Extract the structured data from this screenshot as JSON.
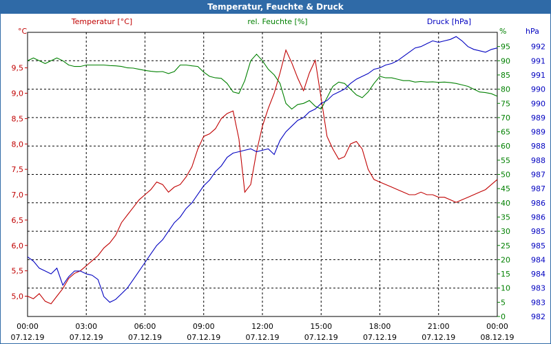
{
  "window": {
    "title": "Temperatur, Feuchte & Druck"
  },
  "colors": {
    "temperature": "#c00000",
    "humidity": "#008000",
    "pressure": "#0000c0",
    "title_bar": "#2f6aa7"
  },
  "chart_data": {
    "type": "line",
    "title": "Temperatur, Feuchte & Druck",
    "xlabel": "",
    "legend": "top",
    "grid": true,
    "x_ticks": [
      {
        "time": "00:00",
        "date": "07.12.19"
      },
      {
        "time": "03:00",
        "date": "07.12.19"
      },
      {
        "time": "06:00",
        "date": "07.12.19"
      },
      {
        "time": "09:00",
        "date": "07.12.19"
      },
      {
        "time": "12:00",
        "date": "07.12.19"
      },
      {
        "time": "15:00",
        "date": "07.12.19"
      },
      {
        "time": "18:00",
        "date": "07.12.19"
      },
      {
        "time": "21:00",
        "date": "07.12.19"
      },
      {
        "time": "00:00",
        "date": "08.12.19"
      }
    ],
    "xlim_hours": [
      0,
      24
    ],
    "axes": {
      "temperature": {
        "unit": "°C",
        "label": "Temperatur [°C]",
        "ylim": [
          4.6,
          10.2
        ],
        "ticks": [
          "5,0",
          "5,5",
          "6,0",
          "6,5",
          "7,0",
          "7,5",
          "8,0",
          "8,5",
          "9,0",
          "9,5"
        ],
        "tick_values": [
          5.0,
          5.5,
          6.0,
          6.5,
          7.0,
          7.5,
          8.0,
          8.5,
          9.0,
          9.5
        ]
      },
      "humidity": {
        "unit": "%",
        "label": "rel. Feuchte [%]",
        "ylim": [
          0,
          100
        ],
        "ticks": [
          "0",
          "5",
          "10",
          "15",
          "20",
          "25",
          "30",
          "35",
          "40",
          "45",
          "50",
          "55",
          "60",
          "65",
          "70",
          "75",
          "80",
          "85",
          "90",
          "95"
        ],
        "tick_values": [
          0,
          5,
          10,
          15,
          20,
          25,
          30,
          35,
          40,
          45,
          50,
          55,
          60,
          65,
          70,
          75,
          80,
          85,
          90,
          95
        ]
      },
      "pressure": {
        "unit": "hPa",
        "label": "Druck [hPa]",
        "ticks": [
          "982",
          "983",
          "983",
          "984",
          "984",
          "985",
          "985",
          "986",
          "986",
          "987",
          "987",
          "988",
          "988",
          "989",
          "989",
          "990",
          "990",
          "991",
          "991",
          "992"
        ]
      }
    },
    "series": [
      {
        "name": "Temperatur [°C]",
        "axis": "temperature",
        "x": [
          0,
          0.3,
          0.6,
          0.9,
          1.2,
          1.5,
          1.8,
          2.1,
          2.4,
          2.7,
          3.0,
          3.3,
          3.6,
          3.9,
          4.2,
          4.5,
          4.8,
          5.1,
          5.4,
          5.7,
          6.0,
          6.3,
          6.6,
          6.9,
          7.2,
          7.5,
          7.8,
          8.1,
          8.4,
          8.7,
          9.0,
          9.3,
          9.6,
          9.9,
          10.2,
          10.5,
          10.8,
          11.1,
          11.4,
          11.7,
          12.0,
          12.3,
          12.6,
          12.9,
          13.2,
          13.5,
          13.8,
          14.1,
          14.4,
          14.7,
          15.0,
          15.3,
          15.6,
          15.9,
          16.2,
          16.5,
          16.8,
          17.1,
          17.4,
          17.7,
          18.0,
          18.3,
          18.6,
          18.9,
          19.2,
          19.5,
          19.8,
          20.1,
          20.4,
          20.7,
          21.0,
          21.3,
          21.6,
          21.9,
          22.2,
          22.5,
          22.8,
          23.1,
          23.4,
          23.7,
          24.0
        ],
        "values": [
          5.0,
          4.95,
          5.05,
          4.9,
          4.85,
          5.0,
          5.15,
          5.35,
          5.45,
          5.5,
          5.6,
          5.7,
          5.8,
          5.95,
          6.05,
          6.2,
          6.45,
          6.6,
          6.75,
          6.9,
          7.0,
          7.1,
          7.25,
          7.2,
          7.05,
          7.15,
          7.2,
          7.35,
          7.55,
          7.9,
          8.15,
          8.2,
          8.3,
          8.5,
          8.6,
          8.65,
          8.1,
          7.05,
          7.2,
          7.85,
          8.35,
          8.7,
          9.0,
          9.4,
          9.85,
          9.6,
          9.3,
          9.05,
          9.4,
          9.65,
          8.9,
          8.15,
          7.9,
          7.7,
          7.75,
          8.0,
          8.05,
          7.9,
          7.5,
          7.3,
          7.25,
          7.2,
          7.15,
          7.1,
          7.05,
          7.0,
          7.0,
          7.05,
          7.0,
          7.0,
          6.95,
          6.95,
          6.9,
          6.85,
          6.9,
          6.95,
          7.0,
          7.05,
          7.1,
          7.2,
          7.3
        ]
      },
      {
        "name": "rel. Feuchte [%]",
        "axis": "humidity",
        "x": [
          0,
          0.3,
          0.6,
          0.9,
          1.2,
          1.5,
          1.8,
          2.1,
          2.4,
          2.7,
          3.0,
          3.3,
          3.6,
          3.9,
          4.2,
          4.5,
          4.8,
          5.1,
          5.4,
          5.7,
          6.0,
          6.3,
          6.6,
          6.9,
          7.2,
          7.5,
          7.8,
          8.1,
          8.4,
          8.7,
          9.0,
          9.3,
          9.6,
          9.9,
          10.2,
          10.5,
          10.8,
          11.1,
          11.4,
          11.7,
          12.0,
          12.3,
          12.6,
          12.9,
          13.2,
          13.5,
          13.8,
          14.1,
          14.4,
          14.7,
          15.0,
          15.3,
          15.6,
          15.9,
          16.2,
          16.5,
          16.8,
          17.1,
          17.4,
          17.7,
          18.0,
          18.3,
          18.6,
          18.9,
          19.2,
          19.5,
          19.8,
          20.1,
          20.4,
          20.7,
          21.0,
          21.3,
          21.6,
          21.9,
          22.2,
          22.5,
          22.8,
          23.1,
          23.4,
          23.7,
          24.0
        ],
        "values": [
          90,
          91,
          90,
          89,
          90,
          91,
          90,
          88.5,
          88,
          88,
          88.5,
          88.5,
          88.5,
          88.5,
          88.3,
          88.2,
          88,
          87.5,
          87.4,
          87,
          86.6,
          86.3,
          86.1,
          86.2,
          85.5,
          86.2,
          88.5,
          88.5,
          88.2,
          88,
          86,
          84.5,
          84,
          83.8,
          82,
          79,
          78.5,
          83,
          90,
          92.3,
          90,
          87,
          85,
          82,
          75,
          73,
          74.6,
          75,
          76,
          74,
          73,
          77,
          81,
          82.5,
          82,
          80,
          78,
          77,
          79,
          82,
          84.5,
          84,
          84,
          83.5,
          83,
          83,
          82.5,
          82.7,
          82.5,
          82.6,
          82.4,
          82.5,
          82.3,
          82,
          81.5,
          81,
          80,
          79,
          78.8,
          78.4,
          77.5
        ]
      },
      {
        "name": "Druck [hPa]",
        "axis": "pressure",
        "axis_ylim_scale": [
          0,
          100
        ],
        "x": [
          0,
          0.3,
          0.6,
          0.9,
          1.2,
          1.5,
          1.8,
          2.1,
          2.4,
          2.7,
          3.0,
          3.3,
          3.6,
          3.9,
          4.2,
          4.5,
          4.8,
          5.1,
          5.4,
          5.7,
          6.0,
          6.3,
          6.6,
          6.9,
          7.2,
          7.5,
          7.8,
          8.1,
          8.4,
          8.7,
          9.0,
          9.3,
          9.6,
          9.9,
          10.2,
          10.5,
          10.8,
          11.1,
          11.4,
          11.7,
          12.0,
          12.3,
          12.6,
          12.9,
          13.2,
          13.5,
          13.8,
          14.1,
          14.4,
          14.7,
          15.0,
          15.3,
          15.6,
          15.9,
          16.2,
          16.5,
          16.8,
          17.1,
          17.4,
          17.7,
          18.0,
          18.3,
          18.6,
          18.9,
          19.2,
          19.5,
          19.8,
          20.1,
          20.4,
          20.7,
          21.0,
          21.3,
          21.6,
          21.9,
          22.2,
          22.5,
          22.8,
          23.1,
          23.4,
          23.7,
          24.0
        ],
        "values": [
          21,
          19.5,
          17,
          16,
          15,
          17,
          11,
          14,
          16,
          16,
          15,
          14.5,
          13,
          7,
          5,
          6,
          8,
          10,
          13,
          16,
          19,
          22,
          25,
          27,
          30,
          33,
          35,
          38,
          40,
          43,
          46,
          48,
          51,
          53,
          56,
          57.5,
          58,
          58.5,
          59,
          58,
          58.5,
          59,
          57,
          62,
          65,
          67,
          69,
          70,
          72,
          73,
          75,
          76,
          78,
          79,
          80,
          82,
          83.5,
          84.5,
          85.5,
          87,
          87.5,
          88.5,
          89,
          90,
          91.5,
          93,
          94.5,
          95,
          96,
          97,
          96.5,
          97,
          97.5,
          98.5,
          97,
          95,
          94,
          93.5,
          93,
          94,
          94.5
        ]
      }
    ]
  }
}
